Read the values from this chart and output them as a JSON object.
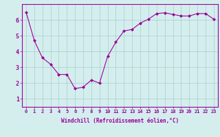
{
  "x": [
    0,
    1,
    2,
    3,
    4,
    5,
    6,
    7,
    8,
    9,
    10,
    11,
    12,
    13,
    14,
    15,
    16,
    17,
    18,
    19,
    20,
    21,
    22,
    23
  ],
  "y": [
    6.5,
    4.7,
    3.6,
    3.2,
    2.55,
    2.55,
    1.65,
    1.75,
    2.2,
    2.0,
    3.7,
    4.6,
    5.3,
    5.4,
    5.8,
    6.05,
    6.4,
    6.45,
    6.35,
    6.25,
    6.25,
    6.4,
    6.4,
    6.05
  ],
  "line_color": "#990099",
  "marker": "D",
  "marker_size": 2,
  "bg_color": "#d4eeee",
  "grid_color": "#aacccc",
  "xlabel": "Windchill (Refroidissement éolien,°C)",
  "ylabel": "",
  "xlim": [
    -0.5,
    23.5
  ],
  "ylim": [
    0.5,
    7.0
  ],
  "yticks": [
    1,
    2,
    3,
    4,
    5,
    6
  ],
  "xticks": [
    0,
    1,
    2,
    3,
    4,
    5,
    6,
    7,
    8,
    9,
    10,
    11,
    12,
    13,
    14,
    15,
    16,
    17,
    18,
    19,
    20,
    21,
    22,
    23
  ],
  "tick_label_color": "#990099",
  "tick_label_fontsize": 5.0,
  "xlabel_fontsize": 5.5,
  "spine_color": "#990099"
}
